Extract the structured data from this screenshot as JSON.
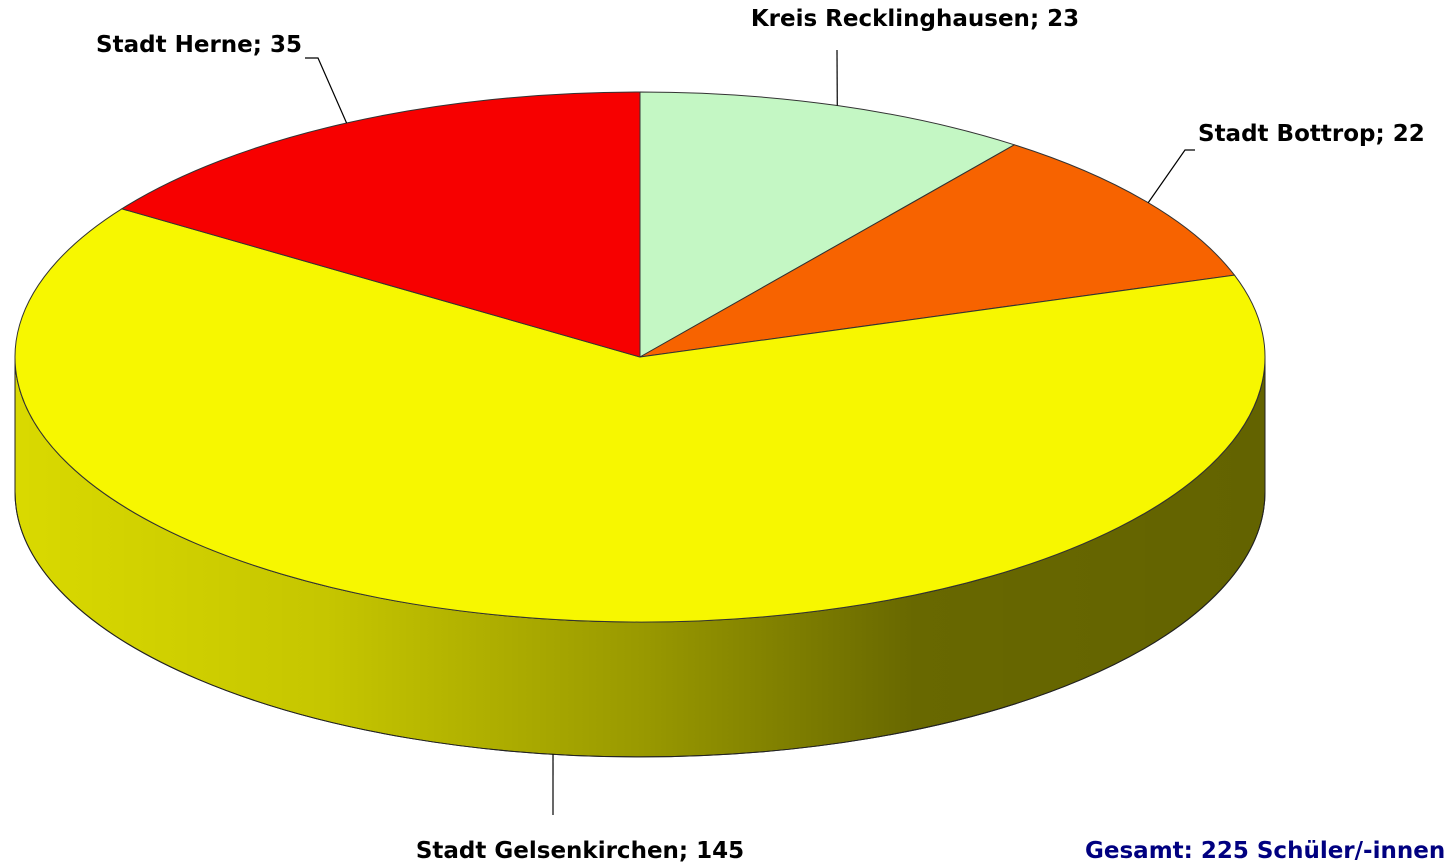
{
  "chart_data": {
    "type": "pie",
    "categories": [
      "Kreis Recklinghausen",
      "Stadt Bottrop",
      "Stadt Gelsenkirchen",
      "Stadt Herne"
    ],
    "values": [
      23,
      22,
      145,
      35
    ],
    "colors": [
      "#c4f7c4",
      "#f76300",
      "#f7f700",
      "#f70000"
    ],
    "label_separator": "; ",
    "annotation": "Gesamt: 225 Schüler/-innen",
    "three_d": true
  }
}
